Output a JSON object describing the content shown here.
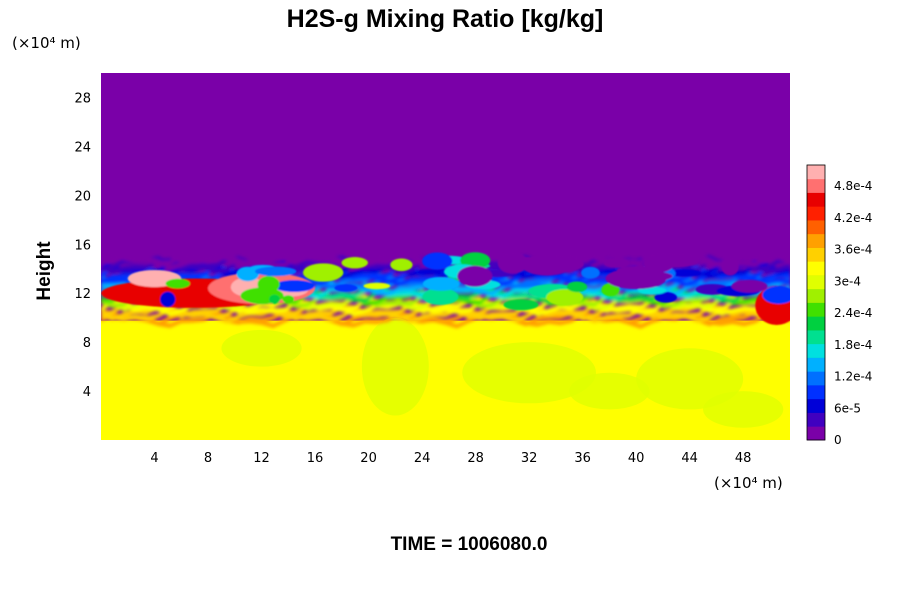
{
  "chart_data": {
    "type": "heatmap",
    "title": "H2S-g Mixing Ratio [kg/kg]",
    "ylabel": "Height",
    "xlabel": "",
    "y_unit": "(×10⁴ m)",
    "x_unit": "(×10⁴ m)",
    "xlim": [
      0,
      51.5
    ],
    "ylim": [
      0,
      30
    ],
    "x_ticks": [
      {
        "value": 4,
        "label": "4"
      },
      {
        "value": 8,
        "label": "8"
      },
      {
        "value": 12,
        "label": "12"
      },
      {
        "value": 16,
        "label": "16"
      },
      {
        "value": 20,
        "label": "20"
      },
      {
        "value": 24,
        "label": "24"
      },
      {
        "value": 28,
        "label": "28"
      },
      {
        "value": 32,
        "label": "32"
      },
      {
        "value": 36,
        "label": "36"
      },
      {
        "value": 40,
        "label": "40"
      },
      {
        "value": 44,
        "label": "44"
      },
      {
        "value": 48,
        "label": "48"
      }
    ],
    "y_ticks": [
      {
        "value": 4,
        "label": "4"
      },
      {
        "value": 8,
        "label": "8"
      },
      {
        "value": 12,
        "label": "12"
      },
      {
        "value": 16,
        "label": "16"
      },
      {
        "value": 20,
        "label": "20"
      },
      {
        "value": 24,
        "label": "24"
      },
      {
        "value": 28,
        "label": "28"
      }
    ],
    "colorbar": {
      "min": 0,
      "max": 0.00052,
      "ticks": [
        {
          "value": 0,
          "label": "0"
        },
        {
          "value": 6e-05,
          "label": "6e-5"
        },
        {
          "value": 0.00012,
          "label": "1.2e-4"
        },
        {
          "value": 0.00018,
          "label": "1.8e-4"
        },
        {
          "value": 0.00024,
          "label": "2.4e-4"
        },
        {
          "value": 0.0003,
          "label": "3e-4"
        },
        {
          "value": 0.00036,
          "label": "3.6e-4"
        },
        {
          "value": 0.00042,
          "label": "4.2e-4"
        },
        {
          "value": 0.00048,
          "label": "4.8e-4"
        }
      ],
      "colors": [
        "#7a00a8",
        "#4000c0",
        "#0000d8",
        "#0030ff",
        "#0070ff",
        "#00b0ff",
        "#00e0e0",
        "#00e090",
        "#00d040",
        "#40e000",
        "#a0f000",
        "#e0ff00",
        "#ffff00",
        "#ffd000",
        "#ffa000",
        "#ff6000",
        "#ff2000",
        "#e80000",
        "#ff7070",
        "#ffb0b0"
      ]
    },
    "field": {
      "lower_layer_value": 0.00033,
      "upper_layer_value": 0,
      "boundary_height_range": [
        10,
        15
      ]
    }
  },
  "footer": {
    "time_label": "TIME = 1006080.0"
  }
}
